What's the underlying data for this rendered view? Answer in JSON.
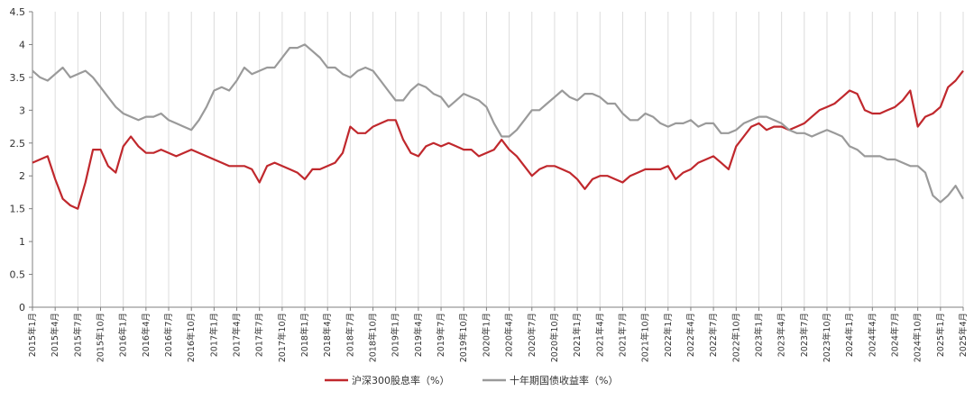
{
  "chart_data": {
    "type": "line",
    "title": "",
    "xlabel": "",
    "ylabel": "",
    "ylim": [
      0,
      4.5
    ],
    "y_ticks": [
      "0",
      "0.5",
      "1",
      "1.5",
      "2",
      "2.5",
      "3",
      "3.5",
      "4",
      "4.5"
    ],
    "grid": "vertical",
    "legend_position": "bottom-center",
    "x_range": [
      "2015-01",
      "2025-04"
    ],
    "x_ticks": [
      "2015年1月",
      "2015年4月",
      "2015年7月",
      "2015年10月",
      "2016年1月",
      "2016年4月",
      "2016年7月",
      "2016年10月",
      "2017年1月",
      "2017年4月",
      "2017年7月",
      "2017年10月",
      "2018年1月",
      "2018年4月",
      "2018年7月",
      "2018年10月",
      "2019年1月",
      "2019年4月",
      "2019年7月",
      "2019年10月",
      "2020年1月",
      "2020年4月",
      "2020年7月",
      "2020年10月",
      "2021年1月",
      "2021年4月",
      "2021年7月",
      "2021年10月",
      "2022年1月",
      "2022年4月",
      "2022年7月",
      "2022年10月",
      "2023年1月",
      "2023年4月",
      "2023年7月",
      "2023年10月",
      "2024年1月",
      "2024年4月",
      "2024年7月",
      "2024年10月",
      "2025年1月",
      "2025年4月"
    ],
    "series": [
      {
        "name": "沪深300股息率（%）",
        "color": "#c0282d",
        "points": [
          [
            "2015-01",
            2.2
          ],
          [
            "2015-02",
            2.25
          ],
          [
            "2015-03",
            2.3
          ],
          [
            "2015-04",
            1.95
          ],
          [
            "2015-05",
            1.65
          ],
          [
            "2015-06",
            1.55
          ],
          [
            "2015-07",
            1.5
          ],
          [
            "2015-08",
            1.9
          ],
          [
            "2015-09",
            2.4
          ],
          [
            "2015-10",
            2.4
          ],
          [
            "2015-11",
            2.15
          ],
          [
            "2015-12",
            2.05
          ],
          [
            "2016-01",
            2.45
          ],
          [
            "2016-02",
            2.6
          ],
          [
            "2016-03",
            2.45
          ],
          [
            "2016-04",
            2.35
          ],
          [
            "2016-05",
            2.35
          ],
          [
            "2016-06",
            2.4
          ],
          [
            "2016-07",
            2.35
          ],
          [
            "2016-08",
            2.3
          ],
          [
            "2016-09",
            2.35
          ],
          [
            "2016-10",
            2.4
          ],
          [
            "2016-11",
            2.35
          ],
          [
            "2016-12",
            2.3
          ],
          [
            "2017-01",
            2.25
          ],
          [
            "2017-02",
            2.2
          ],
          [
            "2017-03",
            2.15
          ],
          [
            "2017-04",
            2.15
          ],
          [
            "2017-05",
            2.15
          ],
          [
            "2017-06",
            2.1
          ],
          [
            "2017-07",
            1.9
          ],
          [
            "2017-08",
            2.15
          ],
          [
            "2017-09",
            2.2
          ],
          [
            "2017-10",
            2.15
          ],
          [
            "2017-11",
            2.1
          ],
          [
            "2017-12",
            2.05
          ],
          [
            "2018-01",
            1.95
          ],
          [
            "2018-02",
            2.1
          ],
          [
            "2018-03",
            2.1
          ],
          [
            "2018-04",
            2.15
          ],
          [
            "2018-05",
            2.2
          ],
          [
            "2018-06",
            2.35
          ],
          [
            "2018-07",
            2.75
          ],
          [
            "2018-08",
            2.65
          ],
          [
            "2018-09",
            2.65
          ],
          [
            "2018-10",
            2.75
          ],
          [
            "2018-11",
            2.8
          ],
          [
            "2018-12",
            2.85
          ],
          [
            "2019-01",
            2.85
          ],
          [
            "2019-02",
            2.55
          ],
          [
            "2019-03",
            2.35
          ],
          [
            "2019-04",
            2.3
          ],
          [
            "2019-05",
            2.45
          ],
          [
            "2019-06",
            2.5
          ],
          [
            "2019-07",
            2.45
          ],
          [
            "2019-08",
            2.5
          ],
          [
            "2019-09",
            2.45
          ],
          [
            "2019-10",
            2.4
          ],
          [
            "2019-11",
            2.4
          ],
          [
            "2019-12",
            2.3
          ],
          [
            "2020-01",
            2.35
          ],
          [
            "2020-02",
            2.4
          ],
          [
            "2020-03",
            2.55
          ],
          [
            "2020-04",
            2.4
          ],
          [
            "2020-05",
            2.3
          ],
          [
            "2020-06",
            2.15
          ],
          [
            "2020-07",
            2.0
          ],
          [
            "2020-08",
            2.1
          ],
          [
            "2020-09",
            2.15
          ],
          [
            "2020-10",
            2.15
          ],
          [
            "2020-11",
            2.1
          ],
          [
            "2020-12",
            2.05
          ],
          [
            "2021-01",
            1.95
          ],
          [
            "2021-02",
            1.8
          ],
          [
            "2021-03",
            1.95
          ],
          [
            "2021-04",
            2.0
          ],
          [
            "2021-05",
            2.0
          ],
          [
            "2021-06",
            1.95
          ],
          [
            "2021-07",
            1.9
          ],
          [
            "2021-08",
            2.0
          ],
          [
            "2021-09",
            2.05
          ],
          [
            "2021-10",
            2.1
          ],
          [
            "2021-11",
            2.1
          ],
          [
            "2021-12",
            2.1
          ],
          [
            "2022-01",
            2.15
          ],
          [
            "2022-02",
            1.95
          ],
          [
            "2022-03",
            2.05
          ],
          [
            "2022-04",
            2.1
          ],
          [
            "2022-05",
            2.2
          ],
          [
            "2022-06",
            2.25
          ],
          [
            "2022-07",
            2.3
          ],
          [
            "2022-08",
            2.2
          ],
          [
            "2022-09",
            2.1
          ],
          [
            "2022-10",
            2.45
          ],
          [
            "2022-11",
            2.6
          ],
          [
            "2022-12",
            2.75
          ],
          [
            "2023-01",
            2.8
          ],
          [
            "2023-02",
            2.7
          ],
          [
            "2023-03",
            2.75
          ],
          [
            "2023-04",
            2.75
          ],
          [
            "2023-05",
            2.7
          ],
          [
            "2023-06",
            2.75
          ],
          [
            "2023-07",
            2.8
          ],
          [
            "2023-08",
            2.9
          ],
          [
            "2023-09",
            3.0
          ],
          [
            "2023-10",
            3.05
          ],
          [
            "2023-11",
            3.1
          ],
          [
            "2023-12",
            3.2
          ],
          [
            "2024-01",
            3.3
          ],
          [
            "2024-02",
            3.25
          ],
          [
            "2024-03",
            3.0
          ],
          [
            "2024-04",
            2.95
          ],
          [
            "2024-05",
            2.95
          ],
          [
            "2024-06",
            3.0
          ],
          [
            "2024-07",
            3.05
          ],
          [
            "2024-08",
            3.15
          ],
          [
            "2024-09",
            3.3
          ],
          [
            "2024-10",
            2.75
          ],
          [
            "2024-11",
            2.9
          ],
          [
            "2024-12",
            2.95
          ],
          [
            "2025-01",
            3.05
          ],
          [
            "2025-02",
            3.35
          ],
          [
            "2025-03",
            3.45
          ],
          [
            "2025-04",
            3.6
          ]
        ]
      },
      {
        "name": "十年期国债收益率（%）",
        "color": "#9a9a9a",
        "points": [
          [
            "2015-01",
            3.6
          ],
          [
            "2015-02",
            3.5
          ],
          [
            "2015-03",
            3.45
          ],
          [
            "2015-04",
            3.55
          ],
          [
            "2015-05",
            3.65
          ],
          [
            "2015-06",
            3.5
          ],
          [
            "2015-07",
            3.55
          ],
          [
            "2015-08",
            3.6
          ],
          [
            "2015-09",
            3.5
          ],
          [
            "2015-10",
            3.35
          ],
          [
            "2015-11",
            3.2
          ],
          [
            "2015-12",
            3.05
          ],
          [
            "2016-01",
            2.95
          ],
          [
            "2016-02",
            2.9
          ],
          [
            "2016-03",
            2.85
          ],
          [
            "2016-04",
            2.9
          ],
          [
            "2016-05",
            2.9
          ],
          [
            "2016-06",
            2.95
          ],
          [
            "2016-07",
            2.85
          ],
          [
            "2016-08",
            2.8
          ],
          [
            "2016-09",
            2.75
          ],
          [
            "2016-10",
            2.7
          ],
          [
            "2016-11",
            2.85
          ],
          [
            "2016-12",
            3.05
          ],
          [
            "2017-01",
            3.3
          ],
          [
            "2017-02",
            3.35
          ],
          [
            "2017-03",
            3.3
          ],
          [
            "2017-04",
            3.45
          ],
          [
            "2017-05",
            3.65
          ],
          [
            "2017-06",
            3.55
          ],
          [
            "2017-07",
            3.6
          ],
          [
            "2017-08",
            3.65
          ],
          [
            "2017-09",
            3.65
          ],
          [
            "2017-10",
            3.8
          ],
          [
            "2017-11",
            3.95
          ],
          [
            "2017-12",
            3.95
          ],
          [
            "2018-01",
            4.0
          ],
          [
            "2018-02",
            3.9
          ],
          [
            "2018-03",
            3.8
          ],
          [
            "2018-04",
            3.65
          ],
          [
            "2018-05",
            3.65
          ],
          [
            "2018-06",
            3.55
          ],
          [
            "2018-07",
            3.5
          ],
          [
            "2018-08",
            3.6
          ],
          [
            "2018-09",
            3.65
          ],
          [
            "2018-10",
            3.6
          ],
          [
            "2018-11",
            3.45
          ],
          [
            "2018-12",
            3.3
          ],
          [
            "2019-01",
            3.15
          ],
          [
            "2019-02",
            3.15
          ],
          [
            "2019-03",
            3.3
          ],
          [
            "2019-04",
            3.4
          ],
          [
            "2019-05",
            3.35
          ],
          [
            "2019-06",
            3.25
          ],
          [
            "2019-07",
            3.2
          ],
          [
            "2019-08",
            3.05
          ],
          [
            "2019-09",
            3.15
          ],
          [
            "2019-10",
            3.25
          ],
          [
            "2019-11",
            3.2
          ],
          [
            "2019-12",
            3.15
          ],
          [
            "2020-01",
            3.05
          ],
          [
            "2020-02",
            2.8
          ],
          [
            "2020-03",
            2.6
          ],
          [
            "2020-04",
            2.6
          ],
          [
            "2020-05",
            2.7
          ],
          [
            "2020-06",
            2.85
          ],
          [
            "2020-07",
            3.0
          ],
          [
            "2020-08",
            3.0
          ],
          [
            "2020-09",
            3.1
          ],
          [
            "2020-10",
            3.2
          ],
          [
            "2020-11",
            3.3
          ],
          [
            "2020-12",
            3.2
          ],
          [
            "2021-01",
            3.15
          ],
          [
            "2021-02",
            3.25
          ],
          [
            "2021-03",
            3.25
          ],
          [
            "2021-04",
            3.2
          ],
          [
            "2021-05",
            3.1
          ],
          [
            "2021-06",
            3.1
          ],
          [
            "2021-07",
            2.95
          ],
          [
            "2021-08",
            2.85
          ],
          [
            "2021-09",
            2.85
          ],
          [
            "2021-10",
            2.95
          ],
          [
            "2021-11",
            2.9
          ],
          [
            "2021-12",
            2.8
          ],
          [
            "2022-01",
            2.75
          ],
          [
            "2022-02",
            2.8
          ],
          [
            "2022-03",
            2.8
          ],
          [
            "2022-04",
            2.85
          ],
          [
            "2022-05",
            2.75
          ],
          [
            "2022-06",
            2.8
          ],
          [
            "2022-07",
            2.8
          ],
          [
            "2022-08",
            2.65
          ],
          [
            "2022-09",
            2.65
          ],
          [
            "2022-10",
            2.7
          ],
          [
            "2022-11",
            2.8
          ],
          [
            "2022-12",
            2.85
          ],
          [
            "2023-01",
            2.9
          ],
          [
            "2023-02",
            2.9
          ],
          [
            "2023-03",
            2.85
          ],
          [
            "2023-04",
            2.8
          ],
          [
            "2023-05",
            2.7
          ],
          [
            "2023-06",
            2.65
          ],
          [
            "2023-07",
            2.65
          ],
          [
            "2023-08",
            2.6
          ],
          [
            "2023-09",
            2.65
          ],
          [
            "2023-10",
            2.7
          ],
          [
            "2023-11",
            2.65
          ],
          [
            "2023-12",
            2.6
          ],
          [
            "2024-01",
            2.45
          ],
          [
            "2024-02",
            2.4
          ],
          [
            "2024-03",
            2.3
          ],
          [
            "2024-04",
            2.3
          ],
          [
            "2024-05",
            2.3
          ],
          [
            "2024-06",
            2.25
          ],
          [
            "2024-07",
            2.25
          ],
          [
            "2024-08",
            2.2
          ],
          [
            "2024-09",
            2.15
          ],
          [
            "2024-10",
            2.15
          ],
          [
            "2024-11",
            2.05
          ],
          [
            "2024-12",
            1.7
          ],
          [
            "2025-01",
            1.6
          ],
          [
            "2025-02",
            1.7
          ],
          [
            "2025-03",
            1.85
          ],
          [
            "2025-04",
            1.65
          ]
        ]
      }
    ]
  }
}
